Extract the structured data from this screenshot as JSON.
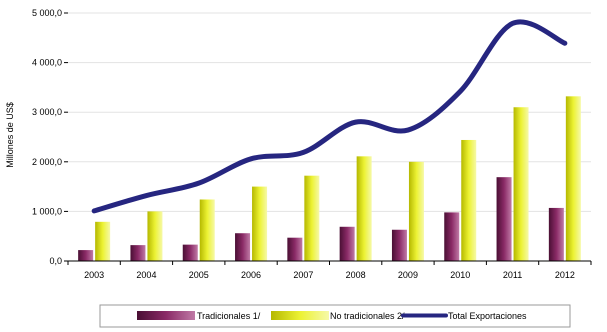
{
  "chart_data": {
    "type": "bar",
    "categories": [
      "2003",
      "2004",
      "2005",
      "2006",
      "2007",
      "2008",
      "2009",
      "2010",
      "2011",
      "2012"
    ],
    "series": [
      {
        "name": "Tradicionales 1/",
        "type": "bar",
        "values": [
          220,
          320,
          330,
          560,
          470,
          690,
          630,
          980,
          1690,
          1070
        ]
      },
      {
        "name": "No tradicionales 2/",
        "type": "bar",
        "values": [
          790,
          1000,
          1240,
          1500,
          1720,
          2110,
          2000,
          2440,
          3100,
          3320
        ]
      },
      {
        "name": "Total Exportaciones",
        "type": "line",
        "values": [
          1010,
          1320,
          1570,
          2060,
          2190,
          2800,
          2640,
          3420,
          4790,
          4390
        ]
      }
    ],
    "ylabel": "Millones de US$",
    "ylim": [
      0,
      5000
    ],
    "yticks": [
      "0,0",
      "1 000,0",
      "2 000,0",
      "3 000,0",
      "4 000,0",
      "5 000,0"
    ],
    "colors": {
      "tradicionales": "#7a1f55",
      "no_tradicionales": "#e8f024",
      "total": "#262680"
    },
    "legend": "bottom"
  }
}
